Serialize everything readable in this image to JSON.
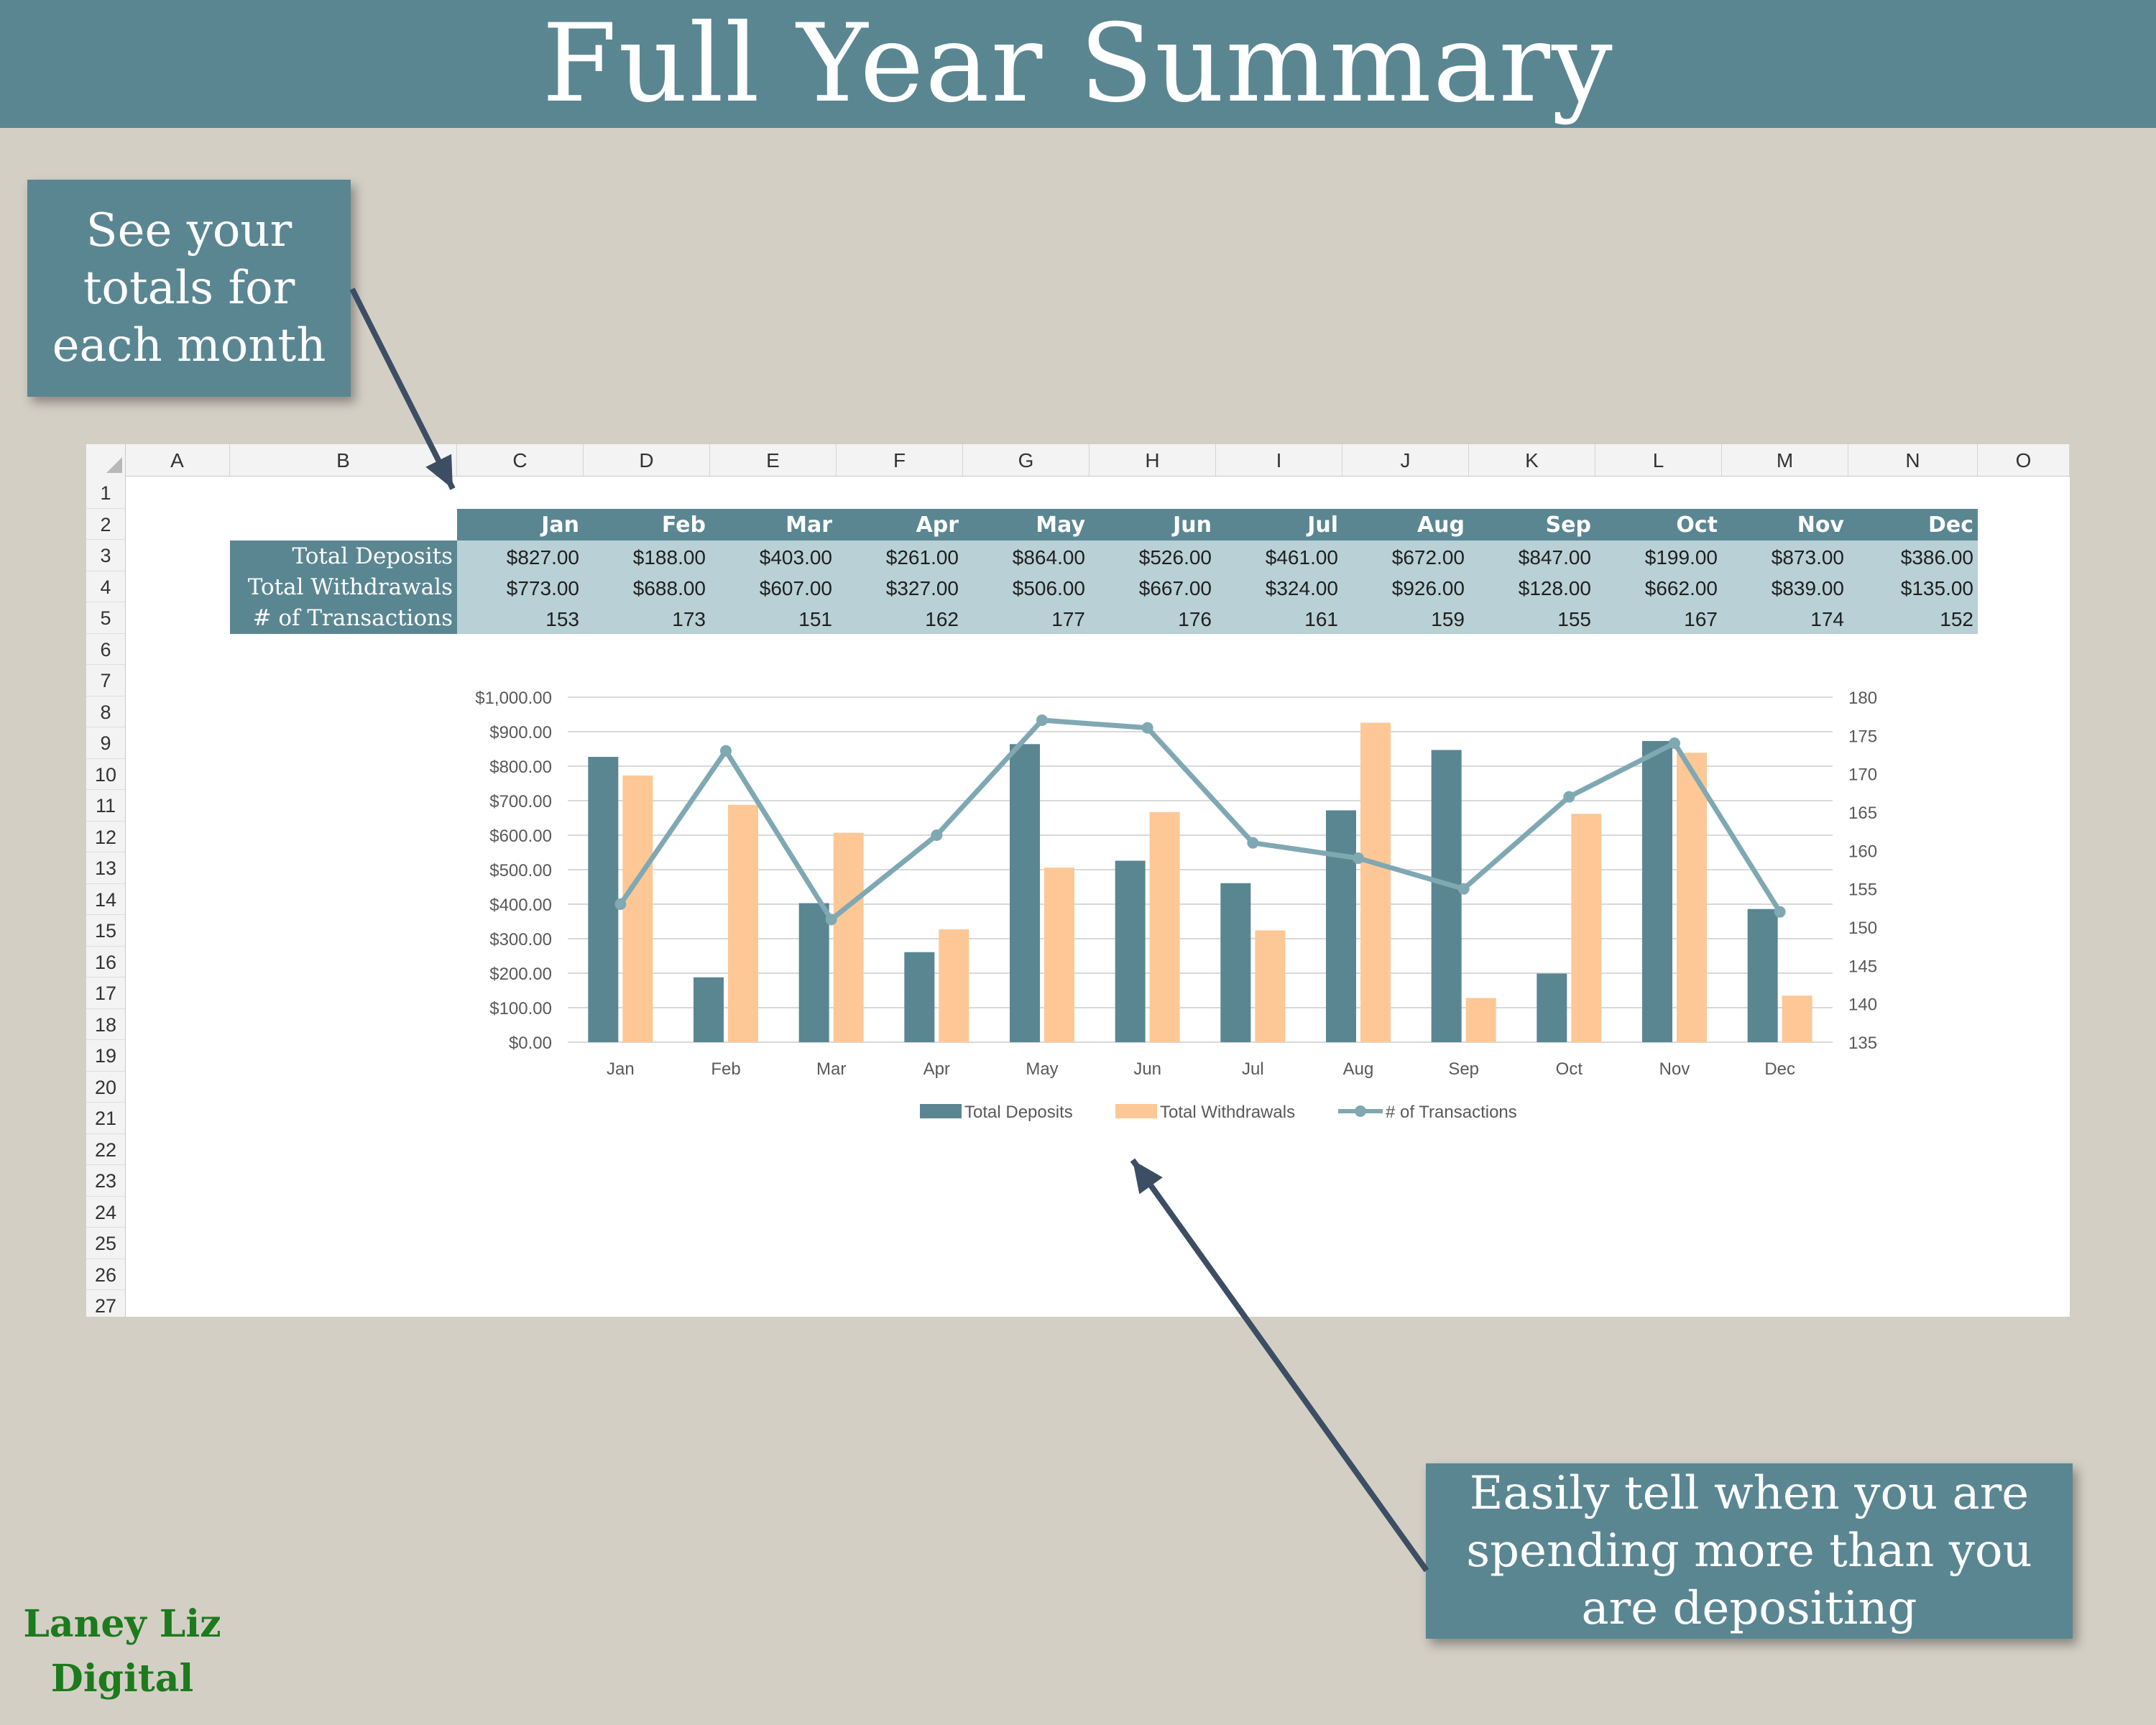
{
  "banner": {
    "title": "Full Year Summary"
  },
  "callouts": {
    "monthly": "See your\ntotals for\neach month",
    "spending": "Easily tell when you are\nspending more than you\nare depositing"
  },
  "brand": {
    "line1": "Laney Liz",
    "line2": "Digital"
  },
  "colors": {
    "banner": "#5a8692",
    "deposits": "#5a8692",
    "withdrawals": "#fdc896",
    "transactions": "#7fa8b3",
    "table_band": "#b8d0d6",
    "arrow": "#3d4d63",
    "brand": "#1d7a1d"
  },
  "sheet": {
    "column_headers": [
      "A",
      "B",
      "C",
      "D",
      "E",
      "F",
      "G",
      "H",
      "I",
      "J",
      "K",
      "L",
      "M",
      "N",
      "O"
    ],
    "row_headers": [
      "1",
      "2",
      "3",
      "4",
      "5",
      "6",
      "7",
      "8",
      "9",
      "10",
      "11",
      "12",
      "13",
      "14",
      "15",
      "16",
      "17",
      "18",
      "19",
      "20",
      "21",
      "22",
      "23",
      "24",
      "25",
      "26",
      "27"
    ]
  },
  "table": {
    "months": [
      "Jan",
      "Feb",
      "Mar",
      "Apr",
      "May",
      "Jun",
      "Jul",
      "Aug",
      "Sep",
      "Oct",
      "Nov",
      "Dec"
    ],
    "rows": [
      {
        "label": "Total Deposits",
        "values": [
          "$827.00",
          "$188.00",
          "$403.00",
          "$261.00",
          "$864.00",
          "$526.00",
          "$461.00",
          "$672.00",
          "$847.00",
          "$199.00",
          "$873.00",
          "$386.00"
        ]
      },
      {
        "label": "Total Withdrawals",
        "values": [
          "$773.00",
          "$688.00",
          "$607.00",
          "$327.00",
          "$506.00",
          "$667.00",
          "$324.00",
          "$926.00",
          "$128.00",
          "$662.00",
          "$839.00",
          "$135.00"
        ]
      },
      {
        "label": "# of Transactions",
        "values": [
          "153",
          "173",
          "151",
          "162",
          "177",
          "176",
          "161",
          "159",
          "155",
          "167",
          "174",
          "152"
        ]
      }
    ]
  },
  "chart_data": {
    "type": "bar",
    "categories": [
      "Jan",
      "Feb",
      "Mar",
      "Apr",
      "May",
      "Jun",
      "Jul",
      "Aug",
      "Sep",
      "Oct",
      "Nov",
      "Dec"
    ],
    "series": [
      {
        "name": "Total Deposits",
        "type": "bar",
        "axis": "left",
        "values": [
          827,
          188,
          403,
          261,
          864,
          526,
          461,
          672,
          847,
          199,
          873,
          386
        ]
      },
      {
        "name": "Total Withdrawals",
        "type": "bar",
        "axis": "left",
        "values": [
          773,
          688,
          607,
          327,
          506,
          667,
          324,
          926,
          128,
          662,
          839,
          135
        ]
      },
      {
        "name": "# of Transactions",
        "type": "line",
        "axis": "right",
        "values": [
          153,
          173,
          151,
          162,
          177,
          176,
          161,
          159,
          155,
          167,
          174,
          152
        ]
      }
    ],
    "ylim": [
      0,
      1000
    ],
    "y2lim": [
      135,
      180
    ],
    "yticks": [
      "$0.00",
      "$100.00",
      "$200.00",
      "$300.00",
      "$400.00",
      "$500.00",
      "$600.00",
      "$700.00",
      "$800.00",
      "$900.00",
      "$1,000.00"
    ],
    "y2ticks": [
      "135",
      "140",
      "145",
      "150",
      "155",
      "160",
      "165",
      "170",
      "175",
      "180"
    ],
    "grid": true,
    "legend_position": "bottom"
  }
}
